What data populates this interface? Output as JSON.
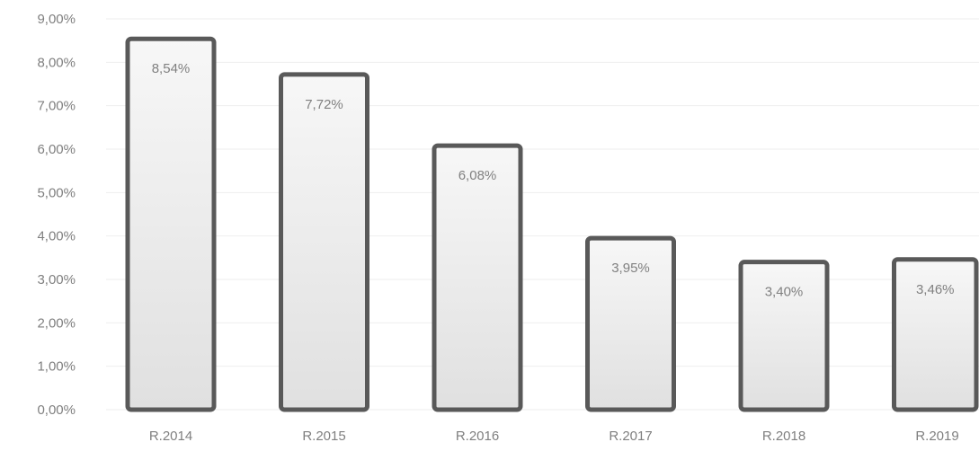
{
  "chart_data": {
    "type": "bar",
    "categories": [
      "R.2014",
      "R.2015",
      "R.2016",
      "R.2017",
      "R.2018",
      "R.2019"
    ],
    "values": [
      8.54,
      7.72,
      6.08,
      3.95,
      3.4,
      3.46
    ],
    "data_labels": [
      "8,54%",
      "7,72%",
      "6,08%",
      "3,95%",
      "3,40%",
      "3,46%"
    ],
    "y_ticks": [
      0,
      1,
      2,
      3,
      4,
      5,
      6,
      7,
      8,
      9
    ],
    "y_tick_labels": [
      "0,00%",
      "1,00%",
      "2,00%",
      "3,00%",
      "4,00%",
      "5,00%",
      "6,00%",
      "7,00%",
      "8,00%",
      "9,00%"
    ],
    "ylim": [
      0,
      9
    ],
    "grid": true,
    "legend": "none",
    "colors": {
      "bar_fill_top": "#f7f7f7",
      "bar_fill_bottom": "#e0e0e0",
      "bar_stroke": "#595959",
      "gridline": "#eeeeee",
      "axis_text": "#7f7f7f",
      "data_label": "#808080"
    }
  }
}
